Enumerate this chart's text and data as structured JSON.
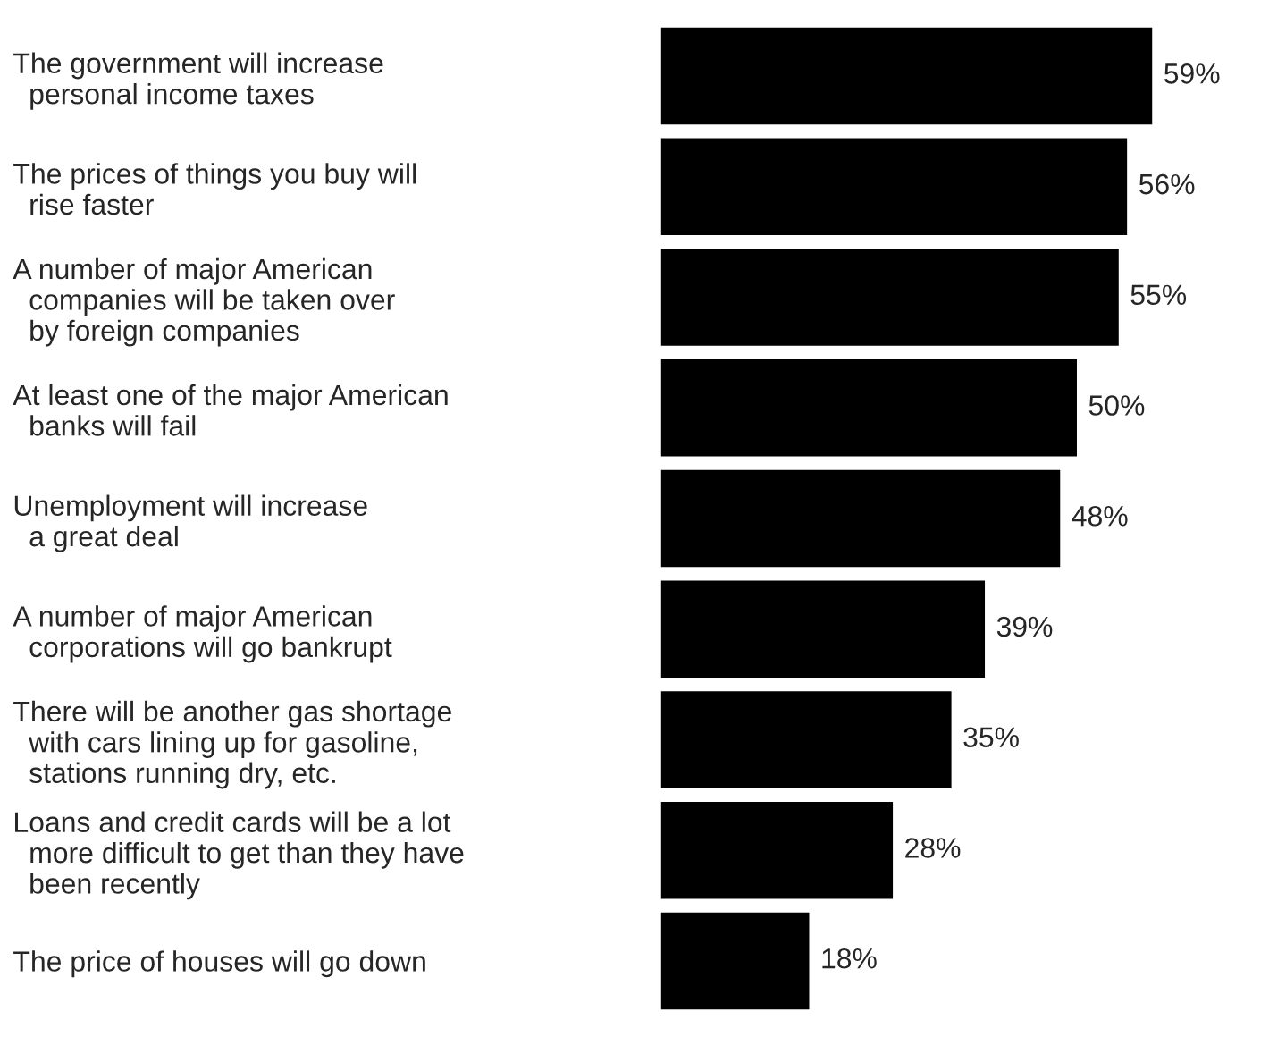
{
  "chart_data": {
    "type": "bar",
    "orientation": "horizontal",
    "categories": [
      "The government will increase\n  personal income taxes",
      "The prices of things you buy will\n  rise faster",
      "A number of major American\n  companies will be taken over\n  by foreign companies",
      "At least one of the major American\n  banks will fail",
      "Unemployment will increase\n  a great deal",
      "A number of major American\n  corporations will go bankrupt",
      "There will be another gas shortage\n  with cars lining up for gasoline,\n  stations running dry, etc.",
      "Loans and credit cards will be a lot\n  more difficult to get than they have\n  been recently",
      "The price of houses will go down"
    ],
    "values": [
      59,
      56,
      55,
      50,
      48,
      39,
      35,
      28,
      18
    ],
    "value_labels": [
      "59%",
      "56%",
      "55%",
      "50%",
      "48%",
      "39%",
      "35%",
      "28%",
      "18%"
    ],
    "color": "#000000",
    "grid": false,
    "legend": false,
    "tick_labels": "y"
  }
}
